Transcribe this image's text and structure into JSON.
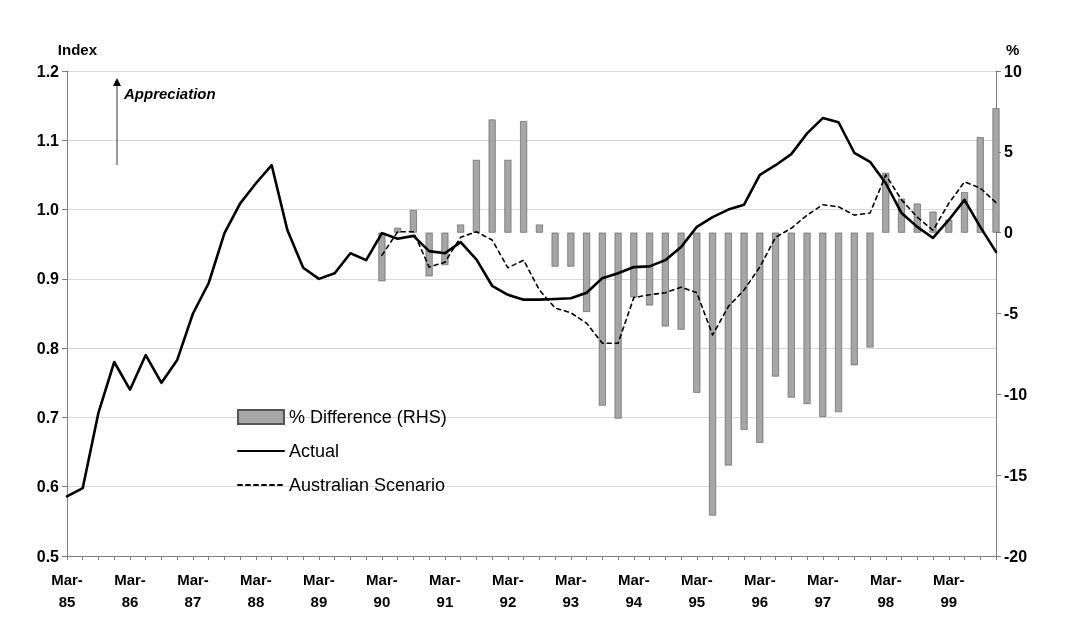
{
  "chart_data": {
    "type": "line",
    "ylabel": "Index",
    "y2label": "%",
    "annotations": [
      "Appreciation"
    ],
    "categories": [
      "Mar-85",
      null,
      null,
      null,
      "Mar-86",
      null,
      null,
      null,
      "Mar-87",
      null,
      null,
      null,
      "Mar-88",
      null,
      null,
      null,
      "Mar-89",
      null,
      null,
      null,
      "Mar-90",
      null,
      null,
      null,
      "Mar-91",
      null,
      null,
      null,
      "Mar-92",
      null,
      null,
      null,
      "Mar-93",
      null,
      null,
      null,
      "Mar-94",
      null,
      null,
      null,
      "Mar-95",
      null,
      null,
      null,
      "Mar-96",
      null,
      null,
      null,
      "Mar-97",
      null,
      null,
      null,
      "Mar-98",
      null,
      null,
      null,
      "Mar-99",
      null,
      null,
      null
    ],
    "ylim": [
      0.5,
      1.2
    ],
    "yticks": [
      0.5,
      0.6,
      0.7,
      0.8,
      0.9,
      {
        "value": 1,
        "label": "1.0"
      },
      1.1,
      1.2
    ],
    "y2lim": [
      -20,
      10
    ],
    "y2ticks": [
      -20,
      -15,
      -10,
      -5,
      0,
      5,
      10
    ],
    "grid": "y",
    "legend": "bottom left",
    "series": [
      {
        "name": "% Difference (RHS)",
        "type": "bar",
        "axis": "y2",
        "color": "#a6a6a6",
        "values": [
          null,
          null,
          null,
          null,
          null,
          null,
          null,
          null,
          null,
          null,
          null,
          null,
          null,
          null,
          null,
          null,
          null,
          null,
          null,
          null,
          -3.0,
          0.3,
          1.4,
          -2.7,
          -2.0,
          0.5,
          4.5,
          7.0,
          4.5,
          6.9,
          0.5,
          -2.1,
          -2.1,
          -4.9,
          -10.7,
          -11.5,
          -4.0,
          -4.5,
          -5.8,
          -6.0,
          -9.9,
          -17.5,
          -14.4,
          -12.2,
          -13.0,
          -8.9,
          -10.2,
          -10.6,
          -11.4,
          -11.1,
          -8.2,
          -7.1,
          3.7,
          2.1,
          1.8,
          1.3,
          0.8,
          2.5,
          5.9,
          7.7
        ]
      },
      {
        "name": "Actual",
        "color": "#000000",
        "line_style": "solid",
        "values": [
          0.586,
          0.598,
          0.707,
          0.78,
          0.74,
          0.79,
          0.75,
          0.783,
          0.85,
          0.894,
          0.966,
          1.009,
          1.038,
          1.064,
          0.97,
          0.916,
          0.9,
          0.908,
          0.937,
          0.927,
          0.966,
          0.958,
          0.962,
          0.94,
          0.937,
          0.953,
          0.928,
          0.89,
          0.877,
          0.87,
          0.87,
          0.871,
          0.872,
          0.88,
          0.901,
          0.908,
          0.917,
          0.918,
          0.927,
          0.946,
          0.975,
          0.989,
          1.0,
          1.007,
          1.05,
          1.064,
          1.08,
          1.11,
          1.132,
          1.126,
          1.082,
          1.069,
          1.038,
          0.995,
          0.975,
          0.959,
          0.985,
          1.014,
          0.975,
          0.939
        ]
      },
      {
        "name": "Australian Scenario",
        "color": "#000000",
        "line_style": "dashed",
        "values": [
          null,
          null,
          null,
          null,
          null,
          null,
          null,
          null,
          null,
          null,
          null,
          null,
          null,
          null,
          null,
          null,
          null,
          null,
          null,
          null,
          0.934,
          0.968,
          0.968,
          0.917,
          0.924,
          0.96,
          0.968,
          0.956,
          0.916,
          0.927,
          0.884,
          0.858,
          0.851,
          0.836,
          0.807,
          0.807,
          0.873,
          0.877,
          0.88,
          0.888,
          0.88,
          0.819,
          0.86,
          0.884,
          0.917,
          0.96,
          0.973,
          0.992,
          1.007,
          1.004,
          0.992,
          0.995,
          1.05,
          1.014,
          0.989,
          0.97,
          1.009,
          1.04,
          1.031,
          1.01
        ]
      }
    ]
  }
}
